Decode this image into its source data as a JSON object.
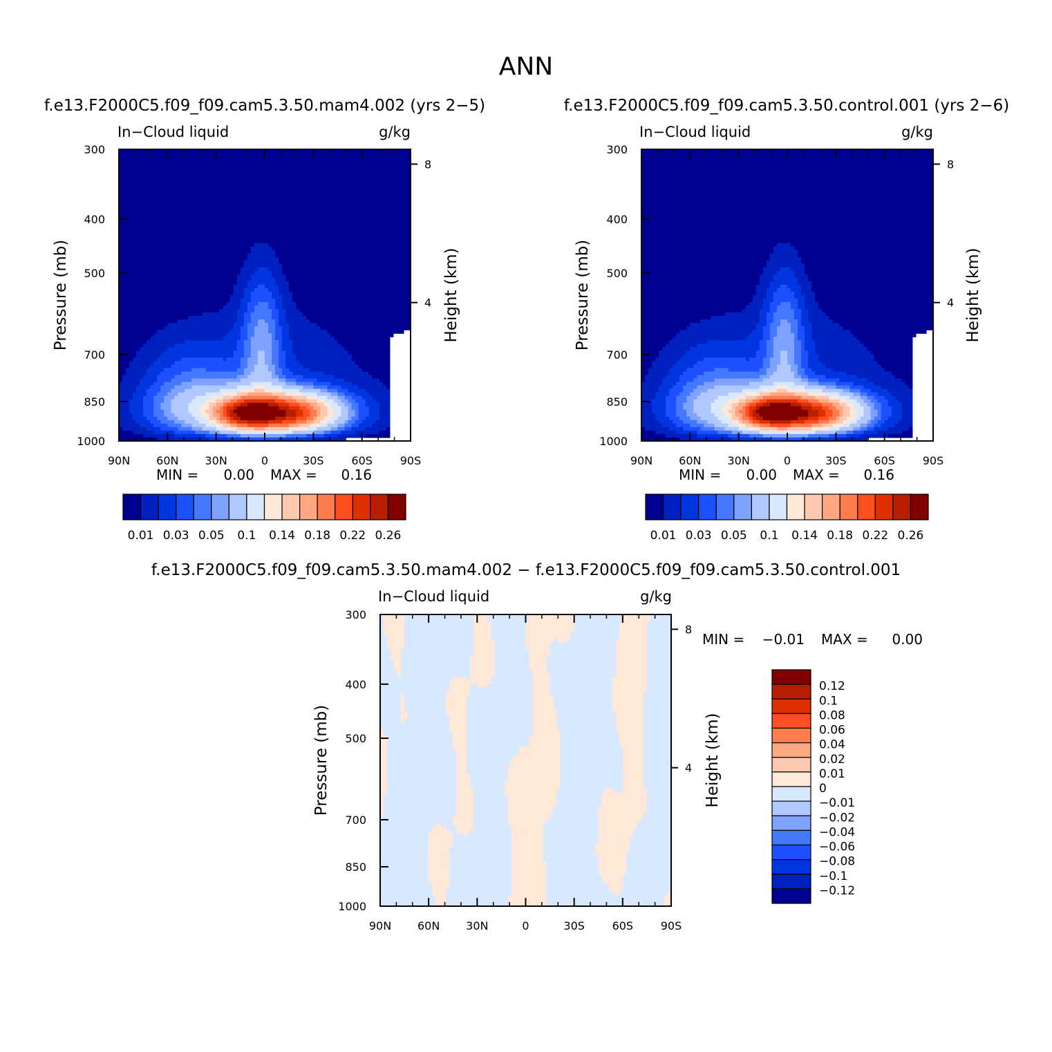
{
  "figure": {
    "title": "ANN"
  },
  "colors": {
    "abs_levels": [
      "#000090",
      "#0020c0",
      "#0036e0",
      "#1d50ff",
      "#4478ff",
      "#7fa2ff",
      "#b0c8ff",
      "#d8e8ff",
      "#ffe8d8",
      "#ffc8b0",
      "#ffa882",
      "#ff7c50",
      "#ff4e20",
      "#e03000",
      "#b81e00",
      "#800000"
    ],
    "diff_levels": [
      "#ffe8d8",
      "#d8e8ff"
    ]
  },
  "chart_data": [
    {
      "type": "contour",
      "title": "f.e13.F2000C5.f09_f09.cam5.3.50.mam4.002 (yrs 2−5)",
      "variable": "In−Cloud liquid",
      "units": "g/kg",
      "ylabel": "Pressure (mb)",
      "y2label": "Height (km)",
      "xticks": [
        "90N",
        "60N",
        "30N",
        "0",
        "30S",
        "60S",
        "90S"
      ],
      "yticks": [
        300,
        400,
        500,
        700,
        850,
        1000
      ],
      "y2ticks": [
        8,
        4
      ],
      "ylim": [
        1000,
        300
      ],
      "stats": {
        "min_label": "MIN =",
        "min": "0.00",
        "max_label": "MAX =",
        "max": "0.16"
      },
      "colorbar_labels": [
        "0.01",
        "0.03",
        "0.05",
        "0.1",
        "0.14",
        "0.18",
        "0.22",
        "0.26"
      ],
      "field_peak": 0.16
    },
    {
      "type": "contour",
      "title": "f.e13.F2000C5.f09_f09.cam5.3.50.control.001 (yrs 2−6)",
      "variable": "In−Cloud liquid",
      "units": "g/kg",
      "ylabel": "Pressure (mb)",
      "y2label": "Height (km)",
      "xticks": [
        "90N",
        "60N",
        "30N",
        "0",
        "30S",
        "60S",
        "90S"
      ],
      "yticks": [
        300,
        400,
        500,
        700,
        850,
        1000
      ],
      "y2ticks": [
        8,
        4
      ],
      "ylim": [
        1000,
        300
      ],
      "stats": {
        "min_label": "MIN =",
        "min": "0.00",
        "max_label": "MAX =",
        "max": "0.16"
      },
      "colorbar_labels": [
        "0.01",
        "0.03",
        "0.05",
        "0.1",
        "0.14",
        "0.18",
        "0.22",
        "0.26"
      ],
      "field_peak": 0.16
    },
    {
      "type": "contour",
      "title": "f.e13.F2000C5.f09_f09.cam5.3.50.mam4.002 − f.e13.F2000C5.f09_f09.cam5.3.50.control.001",
      "variable": "In−Cloud liquid",
      "units": "g/kg",
      "ylabel": "Pressure (mb)",
      "y2label": "Height (km)",
      "xticks": [
        "90N",
        "60N",
        "30N",
        "0",
        "30S",
        "60S",
        "90S"
      ],
      "yticks": [
        300,
        400,
        500,
        700,
        850,
        1000
      ],
      "y2ticks": [
        8,
        4
      ],
      "ylim": [
        1000,
        300
      ],
      "stats": {
        "min_label": "MIN =",
        "min": "−0.01",
        "max_label": "MAX =",
        "max": "0.00"
      },
      "colorbar_labels": [
        "0.12",
        "0.1",
        "0.08",
        "0.06",
        "0.04",
        "0.02",
        "0.01",
        "0",
        "−0.01",
        "−0.02",
        "−0.04",
        "−0.06",
        "−0.08",
        "−0.1",
        "−0.12"
      ]
    }
  ]
}
